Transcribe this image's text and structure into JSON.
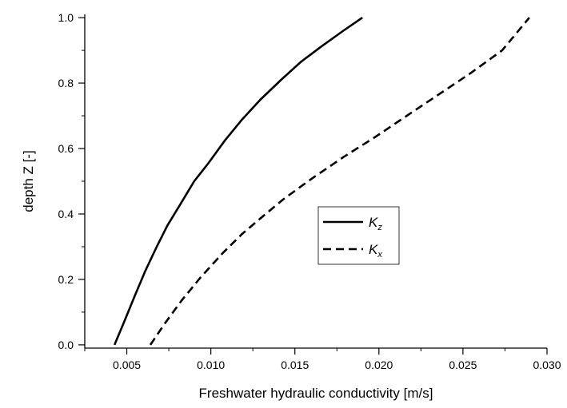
{
  "chart_data": {
    "type": "line",
    "title": "",
    "xlabel": "Freshwater hydraulic conductivity [m/s]",
    "ylabel": "depth Z [-]",
    "xlim": [
      0.0025,
      0.03
    ],
    "ylim": [
      -0.01,
      1.01
    ],
    "xticks": [
      0.005,
      0.01,
      0.015,
      0.02,
      0.025,
      0.03
    ],
    "xtick_labels": [
      "0.005",
      "0.010",
      "0.015",
      "0.020",
      "0.025",
      "0.030"
    ],
    "yticks": [
      0.0,
      0.2,
      0.4,
      0.6,
      0.8,
      1.0
    ],
    "ytick_labels": [
      "0.0",
      "0.2",
      "0.4",
      "0.6",
      "0.8",
      "1.0"
    ],
    "grid": false,
    "legend": {
      "position": "center-right",
      "entries": [
        {
          "main": "K",
          "sub": "z",
          "style": "solid"
        },
        {
          "main": "K",
          "sub": "x",
          "style": "dashed"
        }
      ]
    },
    "series": [
      {
        "style": "solid",
        "color": "#000000",
        "x": [
          0.00427,
          0.00488,
          0.00548,
          0.00609,
          0.00678,
          0.00742,
          0.00819,
          0.00901,
          0.00985,
          0.01084,
          0.01188,
          0.01296,
          0.01418,
          0.01536,
          0.01666,
          0.01788,
          0.01902
        ],
        "y": [
          0.0,
          0.075,
          0.15,
          0.225,
          0.3,
          0.365,
          0.43,
          0.5,
          0.555,
          0.625,
          0.69,
          0.75,
          0.81,
          0.865,
          0.915,
          0.96,
          1.0
        ]
      },
      {
        "style": "dashed",
        "color": "#000000",
        "x": [
          0.0064,
          0.00726,
          0.00825,
          0.00937,
          0.0107,
          0.01188,
          0.01303,
          0.01432,
          0.01606,
          0.01792,
          0.01977,
          0.02166,
          0.02355,
          0.02544,
          0.02733,
          0.02895
        ],
        "y": [
          0.0,
          0.065,
          0.135,
          0.205,
          0.28,
          0.34,
          0.39,
          0.445,
          0.51,
          0.575,
          0.635,
          0.7,
          0.765,
          0.83,
          0.9,
          1.0
        ]
      }
    ]
  }
}
